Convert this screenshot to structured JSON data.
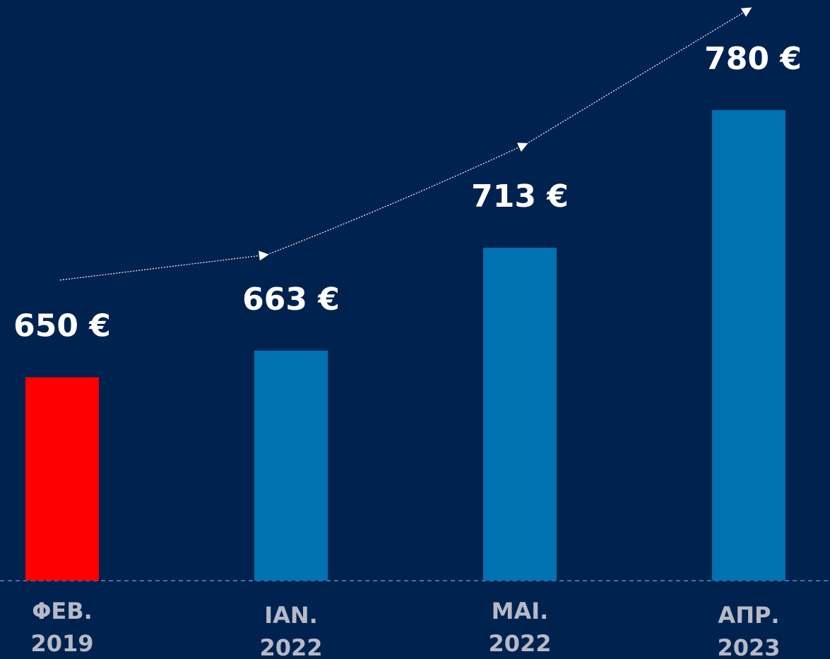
{
  "chart_data": {
    "type": "bar",
    "categories": [
      "ΦΕΒ.\n2019",
      "ΙΑΝ.\n2022",
      "ΜΑΙ.\n2022",
      "ΑΠΡ.\n2023"
    ],
    "values": [
      650,
      663,
      713,
      780
    ],
    "value_labels": [
      "650 €",
      "663 €",
      "713 €",
      "780 €"
    ],
    "colors": [
      "#ff0000",
      "#0071b1",
      "#0071b1",
      "#0071b1"
    ],
    "ylim": [
      551,
      780
    ]
  }
}
